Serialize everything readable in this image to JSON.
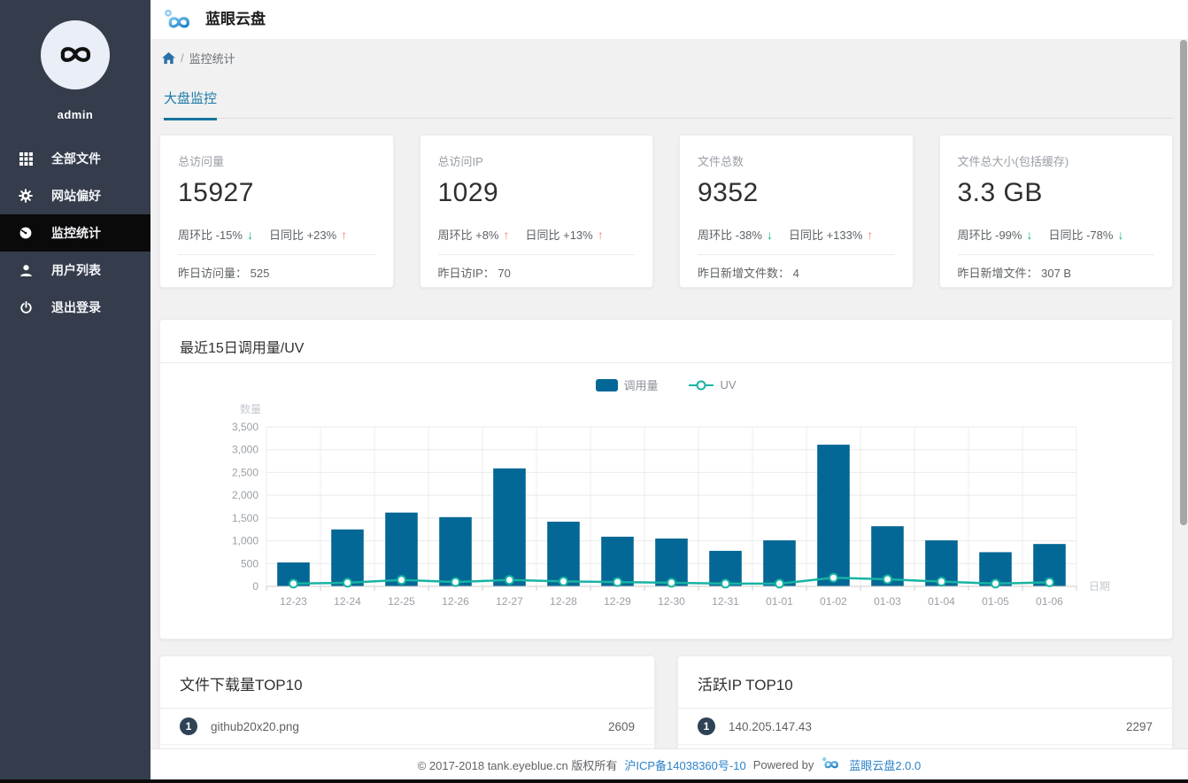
{
  "app": {
    "title": "蓝眼云盘"
  },
  "sidebar": {
    "username": "admin",
    "items": [
      {
        "label": "全部文件",
        "icon": "grid-icon",
        "active": false
      },
      {
        "label": "网站偏好",
        "icon": "gear-icon",
        "active": false
      },
      {
        "label": "监控统计",
        "icon": "dashboard-icon",
        "active": true
      },
      {
        "label": "用户列表",
        "icon": "user-icon",
        "active": false
      },
      {
        "label": "退出登录",
        "icon": "power-icon",
        "active": false
      }
    ]
  },
  "breadcrumb": {
    "current": "监控统计"
  },
  "tabs": [
    {
      "label": "大盘监控",
      "active": true
    }
  ],
  "stat_cards": [
    {
      "label": "总访问量",
      "value": "15927",
      "week_text": "周环比 -15%",
      "week_dir": "down",
      "day_text": "日同比 +23%",
      "day_dir": "up",
      "footer_label": "昨日访问量：",
      "footer_value": "525"
    },
    {
      "label": "总访问IP",
      "value": "1029",
      "week_text": "周环比 +8%",
      "week_dir": "up",
      "day_text": "日同比 +13%",
      "day_dir": "up",
      "footer_label": "昨日访IP：",
      "footer_value": "70"
    },
    {
      "label": "文件总数",
      "value": "9352",
      "week_text": "周环比 -38%",
      "week_dir": "down",
      "day_text": "日同比 +133%",
      "day_dir": "up",
      "footer_label": "昨日新增文件数：",
      "footer_value": "4"
    },
    {
      "label": "文件总大小(包括缓存)",
      "value": "3.3 GB",
      "week_text": "周环比 -99%",
      "week_dir": "down",
      "day_text": "日同比 -78%",
      "day_dir": "down",
      "footer_label": "昨日新增文件：",
      "footer_value": "307 B"
    }
  ],
  "chart_card": {
    "title": "最近15日调用量/UV"
  },
  "chart_data": {
    "type": "bar",
    "title": "最近15日调用量/UV",
    "categories": [
      "12-23",
      "12-24",
      "12-25",
      "12-26",
      "12-27",
      "12-28",
      "12-29",
      "12-30",
      "12-31",
      "01-01",
      "01-02",
      "01-03",
      "01-04",
      "01-05",
      "01-06"
    ],
    "series": [
      {
        "name": "调用量",
        "type": "bar",
        "color": "#046896",
        "values": [
          525,
          1250,
          1620,
          1520,
          2590,
          1420,
          1090,
          1050,
          780,
          1010,
          3110,
          1320,
          1010,
          750,
          930
        ]
      },
      {
        "name": "UV",
        "type": "line",
        "color": "#17b3a3",
        "values": [
          60,
          80,
          140,
          95,
          140,
          110,
          95,
          80,
          60,
          60,
          190,
          155,
          105,
          60,
          90
        ]
      }
    ],
    "xlabel": "日期",
    "ylabel": "数量",
    "ylim": [
      0,
      3500
    ],
    "ytick_step": 500,
    "grid": true,
    "legend_position": "top-center"
  },
  "top_lists": [
    {
      "title": "文件下载量TOP10",
      "rows": [
        {
          "rank": "1",
          "name": "github20x20.png",
          "value": "2609"
        }
      ]
    },
    {
      "title": "活跃IP TOP10",
      "rows": [
        {
          "rank": "1",
          "name": "140.205.147.43",
          "value": "2297"
        }
      ]
    }
  ],
  "footer": {
    "copyright": "© 2017-2018 tank.eyeblue.cn 版权所有",
    "icp": "沪ICP备14038360号-10",
    "powered_by": "Powered by",
    "brand": "蓝眼云盘2.0.0"
  },
  "colors": {
    "sidebar_bg": "#353c4b",
    "sidebar_active_bg": "#0a0a0a",
    "bar": "#046896",
    "line": "#17b3a3",
    "tab_blue": "#1b7aa5",
    "link_blue": "#2b82c9",
    "up_arrow": "#f0836e",
    "down_arrow": "#0cb57f",
    "badge": "#2e4355"
  }
}
